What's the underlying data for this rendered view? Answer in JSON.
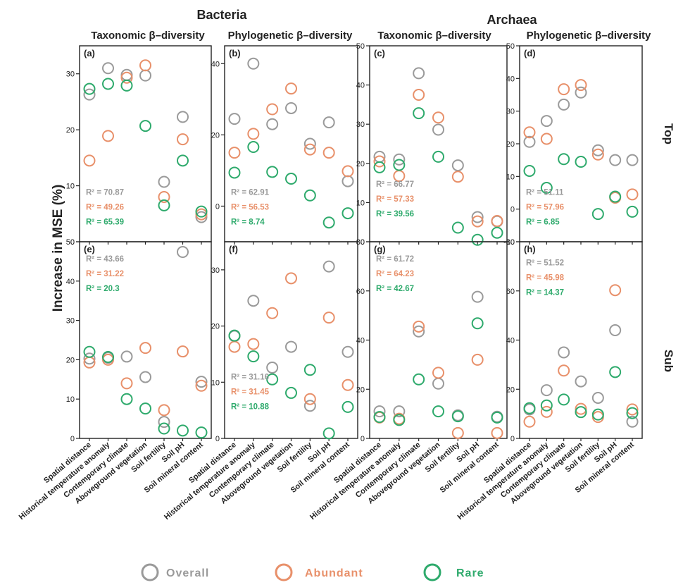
{
  "header": {
    "bacteria": "Bacteria",
    "archaea": "Archaea",
    "col_titles": [
      "Taxonomic β–diversity",
      "Phylogenetic β–diversity",
      "Taxonomic β–diversity",
      "Phylogenetic β–diversity"
    ],
    "row_labels": [
      "Top",
      "Sub"
    ],
    "ylabel": "Increase in MSE (%)"
  },
  "categories": [
    "Spatial distance",
    "Historical temperature anomaly",
    "Contemporary climate",
    "Aboveground vegetation",
    "Soil fertility",
    "Soil pH",
    "Soil mineral content"
  ],
  "legend": [
    {
      "name": "Overall",
      "color": "#9a9a9a"
    },
    {
      "name": "Abundant",
      "color": "#e8906a"
    },
    {
      "name": "Rare",
      "color": "#2eaa6c"
    }
  ],
  "chart_data": [
    {
      "type": "scatter",
      "panel": "(a)",
      "ylim": [
        0,
        35
      ],
      "yticks": [
        0,
        10,
        20,
        30
      ],
      "series": [
        {
          "name": "Overall",
          "values": [
            26.3,
            31,
            29.8,
            29.7,
            10.7,
            22.3,
            4.4
          ]
        },
        {
          "name": "Abundant",
          "values": [
            14.5,
            18.9,
            29.3,
            31.5,
            8,
            18.3,
            4.9
          ]
        },
        {
          "name": "Rare",
          "values": [
            27.3,
            28.2,
            27.9,
            20.7,
            6.5,
            14.5,
            5.4
          ]
        }
      ],
      "r2": [
        "R² = 70.87",
        "R² = 49.26",
        "R² = 65.39"
      ]
    },
    {
      "type": "scatter",
      "panel": "(b)",
      "ylim": [
        -10,
        45
      ],
      "yticks": [
        0,
        20,
        40
      ],
      "series": [
        {
          "name": "Overall",
          "values": [
            24.5,
            40,
            23,
            27.5,
            17.5,
            23.5,
            7
          ]
        },
        {
          "name": "Abundant",
          "values": [
            15,
            20.3,
            27.2,
            33,
            15.9,
            15,
            9.8
          ]
        },
        {
          "name": "Rare",
          "values": [
            9.4,
            16.6,
            9.6,
            7.7,
            3,
            -4.6,
            -2
          ]
        }
      ],
      "r2": [
        "R² = 62.91",
        "R² = 56.53",
        "R² = 8.74"
      ]
    },
    {
      "type": "scatter",
      "panel": "(c)",
      "ylim": [
        0,
        50
      ],
      "yticks": [
        0,
        10,
        20,
        30,
        40,
        50
      ],
      "series": [
        {
          "name": "Overall",
          "values": [
            21.7,
            21,
            43,
            28.6,
            19.5,
            6.3,
            5.2
          ]
        },
        {
          "name": "Abundant",
          "values": [
            20.5,
            16.8,
            37.5,
            31.7,
            16.6,
            5.2,
            5.3
          ]
        },
        {
          "name": "Rare",
          "values": [
            19,
            19.6,
            32.8,
            21.7,
            3.6,
            0.5,
            2.3
          ]
        }
      ],
      "r2": [
        "R² = 66.77",
        "R² = 57.33",
        "R² = 39.56"
      ]
    },
    {
      "type": "scatter",
      "panel": "(d)",
      "ylim": [
        -10,
        50
      ],
      "yticks": [
        -10,
        0,
        10,
        20,
        30,
        40,
        50
      ],
      "series": [
        {
          "name": "Overall",
          "values": [
            20.6,
            27,
            32,
            35.7,
            18,
            15,
            15
          ]
        },
        {
          "name": "Abundant",
          "values": [
            23.5,
            21.5,
            36.7,
            38,
            16.7,
            3.5,
            4.5
          ]
        },
        {
          "name": "Rare",
          "values": [
            11.7,
            6.5,
            15.3,
            14.5,
            -1.5,
            3.8,
            -0.8
          ]
        }
      ],
      "r2": [
        "R² = 51.11",
        "R² = 57.96",
        "R² = 6.85"
      ]
    },
    {
      "type": "scatter",
      "panel": "(e)",
      "ylim": [
        0,
        50
      ],
      "yticks": [
        0,
        10,
        20,
        30,
        40,
        50
      ],
      "series": [
        {
          "name": "Overall",
          "values": [
            20.3,
            20.5,
            20.8,
            15.6,
            4.2,
            47.4,
            14.4
          ]
        },
        {
          "name": "Abundant",
          "values": [
            19.3,
            20,
            14,
            23,
            7.2,
            22.1,
            13.4
          ]
        },
        {
          "name": "Rare",
          "values": [
            22,
            20.7,
            10,
            7.6,
            2.5,
            2,
            1.5
          ]
        }
      ],
      "r2": [
        "R² = 43.66",
        "R² = 31.22",
        "R² = 20.3"
      ]
    },
    {
      "type": "scatter",
      "panel": "(f)",
      "ylim": [
        0,
        35
      ],
      "yticks": [
        0,
        10,
        20,
        30
      ],
      "series": [
        {
          "name": "Overall",
          "values": [
            18.2,
            24.5,
            12.6,
            16.3,
            5.8,
            30.6,
            15.4
          ]
        },
        {
          "name": "Abundant",
          "values": [
            16.3,
            16.8,
            22.3,
            28.5,
            7,
            21.5,
            9.5
          ]
        },
        {
          "name": "Rare",
          "values": [
            18.3,
            14.6,
            10.5,
            8.1,
            12.2,
            0.9,
            5.6
          ]
        }
      ],
      "r2": [
        "R² = 31.16",
        "R² = 31.45",
        "R² = 10.88"
      ]
    },
    {
      "type": "scatter",
      "panel": "(g)",
      "ylim": [
        0,
        80
      ],
      "yticks": [
        0,
        20,
        40,
        60,
        80
      ],
      "series": [
        {
          "name": "Overall",
          "values": [
            11,
            11,
            43.5,
            22.3,
            9.4,
            57.6,
            8.8
          ]
        },
        {
          "name": "Abundant",
          "values": [
            8.5,
            8,
            45.5,
            26.7,
            2.2,
            32,
            2.2
          ]
        },
        {
          "name": "Rare",
          "values": [
            8.7,
            7.5,
            24,
            11,
            9,
            46.8,
            8.5
          ]
        }
      ],
      "r2": [
        "R² = 61.72",
        "R² = 64.23",
        "R² = 42.67"
      ]
    },
    {
      "type": "scatter",
      "panel": "(h)",
      "ylim": [
        0,
        80
      ],
      "yticks": [
        0,
        20,
        40,
        60,
        80
      ],
      "series": [
        {
          "name": "Overall",
          "values": [
            11.8,
            19.6,
            35,
            23.2,
            16.5,
            44,
            6.8
          ]
        },
        {
          "name": "Abundant",
          "values": [
            6.8,
            10.8,
            27.6,
            12,
            8.7,
            60.3,
            11.8
          ]
        },
        {
          "name": "Rare",
          "values": [
            12.3,
            13.4,
            15.8,
            10.7,
            9.7,
            27,
            10.3
          ]
        }
      ],
      "r2": [
        "R² = 51.52",
        "R² = 45.98",
        "R² = 14.37"
      ]
    }
  ]
}
